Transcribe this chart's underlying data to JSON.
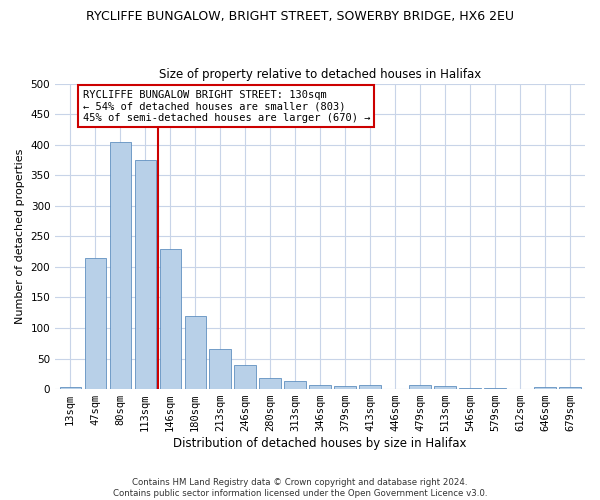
{
  "title": "RYCLIFFE BUNGALOW, BRIGHT STREET, SOWERBY BRIDGE, HX6 2EU",
  "subtitle": "Size of property relative to detached houses in Halifax",
  "xlabel": "Distribution of detached houses by size in Halifax",
  "ylabel": "Number of detached properties",
  "categories": [
    "13sqm",
    "47sqm",
    "80sqm",
    "113sqm",
    "146sqm",
    "180sqm",
    "213sqm",
    "246sqm",
    "280sqm",
    "313sqm",
    "346sqm",
    "379sqm",
    "413sqm",
    "446sqm",
    "479sqm",
    "513sqm",
    "546sqm",
    "579sqm",
    "612sqm",
    "646sqm",
    "679sqm"
  ],
  "values": [
    3,
    215,
    405,
    375,
    230,
    120,
    65,
    40,
    18,
    13,
    7,
    5,
    7,
    0,
    7,
    5,
    1,
    1,
    0,
    3,
    3
  ],
  "bar_color": "#b8d0e8",
  "bar_edge_color": "#6090c0",
  "background_color": "#ffffff",
  "grid_color": "#c8d4e8",
  "vline_color": "#cc0000",
  "vline_x": 3.5,
  "annotation_text": "RYCLIFFE BUNGALOW BRIGHT STREET: 130sqm\n← 54% of detached houses are smaller (803)\n45% of semi-detached houses are larger (670) →",
  "annotation_box_color": "#ffffff",
  "annotation_box_edge": "#cc0000",
  "ylim": [
    0,
    500
  ],
  "yticks": [
    0,
    50,
    100,
    150,
    200,
    250,
    300,
    350,
    400,
    450,
    500
  ],
  "footer_text": "Contains HM Land Registry data © Crown copyright and database right 2024.\nContains public sector information licensed under the Open Government Licence v3.0.",
  "title_fontsize": 9,
  "subtitle_fontsize": 8.5,
  "xlabel_fontsize": 8.5,
  "ylabel_fontsize": 8,
  "tick_fontsize": 7.5,
  "annotation_fontsize": 7.5
}
